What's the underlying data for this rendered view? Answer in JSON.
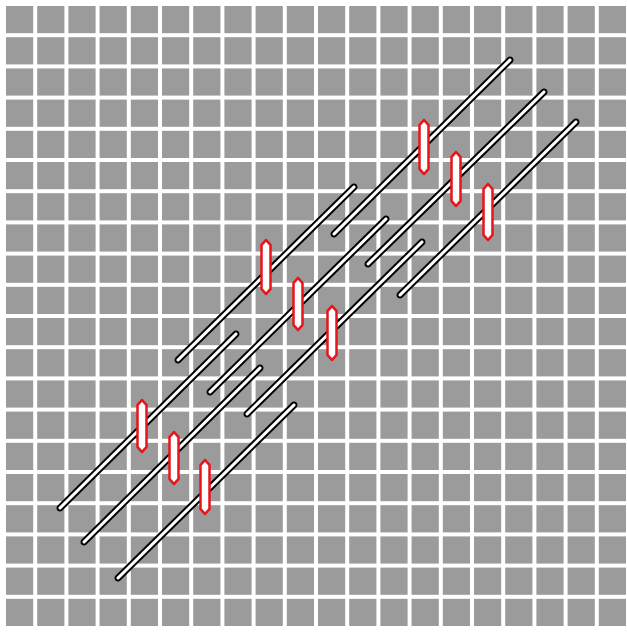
{
  "board": {
    "background_color": "#ffffff",
    "tile_color": "#9b9b9b",
    "rows": 20,
    "cols": 20
  },
  "pieces": {
    "rod_fill": "#ffffff",
    "rod_outline": "#000000",
    "pin_fill": "#ffffff",
    "pin_outline": "#e8141a",
    "rod_count": 9,
    "pin_count": 9
  }
}
